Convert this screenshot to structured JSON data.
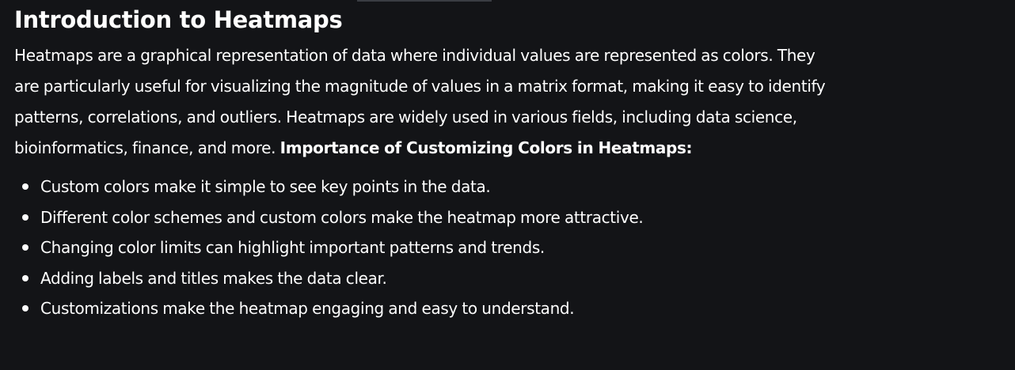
{
  "article": {
    "title": "Introduction to Heatmaps",
    "intro": "Heatmaps are a graphical representation of data where individual values are represented as colors. They are particularly useful for visualizing the magnitude of values in a matrix format, making it easy to identify patterns, correlations, and outliers. Heatmaps are widely used in various fields, including data science, bioinformatics, finance, and more.",
    "section_label": "Importance of Customizing Colors in Heatmaps:",
    "bullets": [
      "Custom colors make it simple to see key points in the data.",
      "Different color schemes and custom colors make the heatmap more attractive.",
      "Changing color limits can highlight important patterns and trends.",
      "Adding labels and titles makes the data clear.",
      "Customizations make the heatmap engaging and easy to understand."
    ]
  },
  "colors": {
    "background": "#131417",
    "text": "#ffffff"
  }
}
